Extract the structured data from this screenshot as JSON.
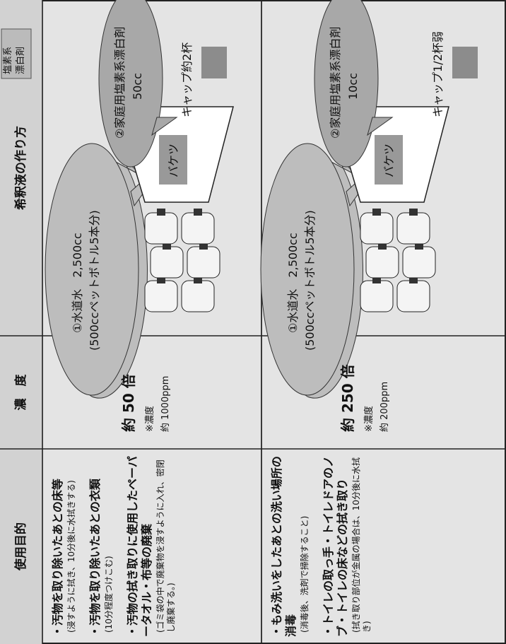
{
  "header": {
    "columns": [
      "使用目的",
      "濃　度",
      "希釈液の作り方"
    ]
  },
  "corner_label": [
    "塩素系",
    "漂白剤"
  ],
  "rows": [
    {
      "purposes": [
        {
          "title": "・汚物を取り除いたあとの床等",
          "note": "(浸すように拭き、10分後に水拭きする)"
        },
        {
          "title": "・汚物を取り除いたあとの衣類",
          "note": "(10分程度つけこむ)"
        },
        {
          "title": "・汚物の拭き取りに使用したペーパータオル・布等の廃棄",
          "note": "(ゴミ袋の中で廃棄物を浸すように入れ、密閉し廃棄する。)"
        }
      ],
      "concentration": {
        "ratio": "約 50 倍",
        "label": "※濃度",
        "ppm": "約 1000ppm"
      },
      "dilution": {
        "water": "①水道水　2,500cc",
        "water_note": "(500ccペットボトル5本分)",
        "bleach": "②家庭用塩素系漂白剤",
        "bleach_amount": "50cc",
        "bucket": "バケツ",
        "cap": "キャップ約2杯"
      }
    },
    {
      "purposes": [
        {
          "title": "・もみ洗いをしたあとの洗い場所の消毒",
          "note": "(消毒後、洗剤で掃除すること)"
        },
        {
          "title": "・トイレの取っ手・トイレドアのノブ・トイレの床などの拭き取り",
          "note": "(拭き取り部位が金属の場合は、10分後に水拭き)"
        }
      ],
      "concentration": {
        "ratio": "約 250 倍",
        "label": "※濃度",
        "ppm": "約 200ppm"
      },
      "dilution": {
        "water": "①水道水　2,500cc",
        "water_note": "(500ccペットボトル5本分)",
        "bleach": "②家庭用塩素系漂白剤",
        "bleach_amount": "10cc",
        "bucket": "バケツ",
        "cap": "キャップ1/2杯弱"
      }
    }
  ]
}
